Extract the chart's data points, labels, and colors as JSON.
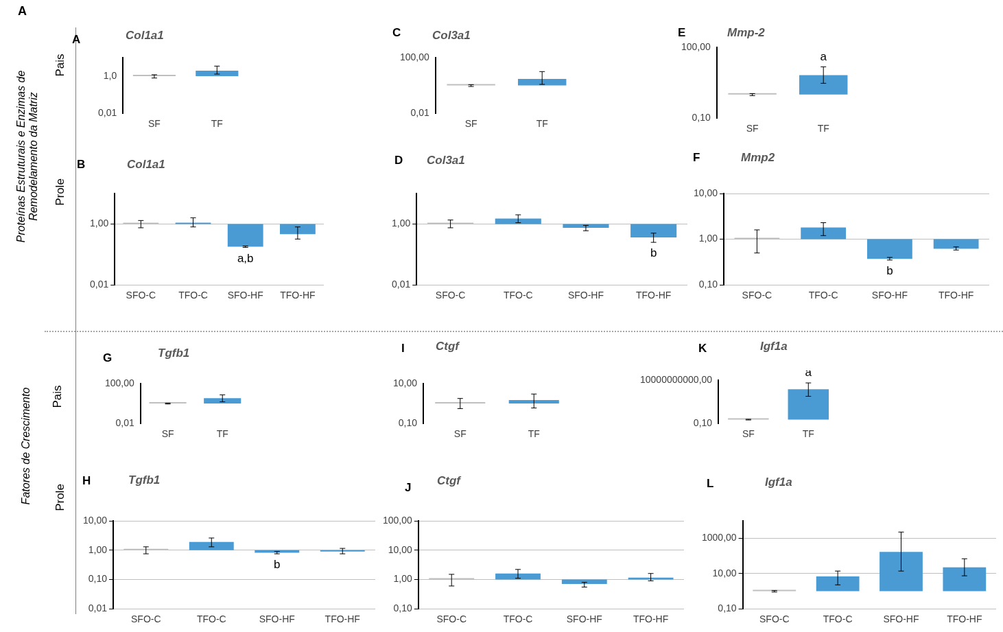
{
  "chart_data": [
    {
      "type": "bar",
      "title": "Col1a1",
      "categories": [
        "SF",
        "TF"
      ],
      "base": [
        1,
        1
      ],
      "values": [
        0,
        1
      ],
      "colors": [
        "#bfbfbf",
        "#4a9bd4"
      ],
      "errors": [
        [
          0.8,
          1.2
        ],
        [
          1.3,
          3.5
        ]
      ],
      "ylim": [
        0.01,
        10
      ],
      "yticks": [
        {
          "value": 0.01,
          "label": "0,01"
        },
        {
          "value": 1,
          "label": "1,0"
        }
      ],
      "log": true,
      "legend": false,
      "annotations": [
        "A",
        "Pais",
        "Proteínas Estruturais e Enzimas de Remodelamento da Matriz",
        "A"
      ]
    },
    {
      "type": "bar",
      "title": "Col3a1",
      "categories": [
        "SF",
        "TF"
      ],
      "base": [
        1,
        1
      ],
      "values": [
        0,
        2
      ],
      "colors": [
        "#bfbfbf",
        "#4a9bd4"
      ],
      "errors": [
        [
          0.85,
          1.15
        ],
        [
          1.2,
          10
        ]
      ],
      "ylim": [
        0.01,
        100
      ],
      "yticks": [
        {
          "value": 0.01,
          "label": "0,01"
        },
        {
          "value": 100,
          "label": "100,00"
        }
      ],
      "log": true,
      "legend": false,
      "annotations": [
        "C"
      ]
    },
    {
      "type": "bar",
      "title": "Mmp-2",
      "categories": [
        "SF",
        "TF"
      ],
      "base": [
        1,
        1
      ],
      "values": [
        0,
        5.7
      ],
      "colors": [
        "#bfbfbf",
        "#4a9bd4"
      ],
      "errors": [
        [
          0.9,
          1.1
        ],
        [
          3,
          15
        ]
      ],
      "ylim": [
        0.1,
        100
      ],
      "yticks": [
        {
          "value": 0.1,
          "label": "0,10"
        },
        {
          "value": 100,
          "label": "100,00"
        }
      ],
      "log": true,
      "legend": false,
      "annotations": [
        "E",
        {
          "text": "a",
          "x": "TF",
          "y": 6.7
        }
      ]
    },
    {
      "type": "bar",
      "title": "Col1a1",
      "categories": [
        "SFO-C",
        "TFO-C",
        "SFO-HF",
        "TFO-HF"
      ],
      "base": [
        1,
        1,
        1,
        1
      ],
      "values": [
        0,
        0.1,
        -0.82,
        -0.54
      ],
      "colors": [
        "#bfbfbf",
        "#4a9bd4",
        "#4a9bd4",
        "#4a9bd4"
      ],
      "errors": [
        [
          0.75,
          1.3
        ],
        [
          0.8,
          1.6
        ],
        [
          0.17,
          0.19
        ],
        [
          0.32,
          0.8
        ]
      ],
      "ylim": [
        0.01,
        10
      ],
      "yticks": [
        {
          "value": 0.01,
          "label": "0,01"
        },
        {
          "value": 1,
          "label": "1,00"
        }
      ],
      "log": true,
      "grid": "y",
      "legend": false,
      "annotations": [
        "B",
        "Prole",
        {
          "text": "a,b",
          "x": "SFO-HF",
          "y": 0.18
        }
      ]
    },
    {
      "type": "bar",
      "title": "Col3a1",
      "categories": [
        "SFO-C",
        "TFO-C",
        "SFO-HF",
        "TFO-HF"
      ],
      "base": [
        1,
        1,
        1,
        1
      ],
      "values": [
        0,
        0.5,
        -0.25,
        -0.64
      ],
      "colors": [
        "#bfbfbf",
        "#4a9bd4",
        "#4a9bd4",
        "#4a9bd4"
      ],
      "errors": [
        [
          0.75,
          1.35
        ],
        [
          1.1,
          2.0
        ],
        [
          0.6,
          0.9
        ],
        [
          0.25,
          0.5
        ]
      ],
      "ylim": [
        0.01,
        10
      ],
      "yticks": [
        {
          "value": 0.01,
          "label": "0,01"
        },
        {
          "value": 1,
          "label": "1,00"
        }
      ],
      "log": true,
      "grid": "y",
      "legend": false,
      "annotations": [
        "D",
        {
          "text": "b",
          "x": "TFO-HF",
          "y": 0.36
        }
      ]
    },
    {
      "type": "bar",
      "title": "Mmp2",
      "categories": [
        "SFO-C",
        "TFO-C",
        "SFO-HF",
        "TFO-HF"
      ],
      "base": [
        1,
        1,
        1,
        1
      ],
      "values": [
        0,
        0.8,
        -0.63,
        -0.38
      ],
      "colors": [
        "#bfbfbf",
        "#4a9bd4",
        "#4a9bd4",
        "#4a9bd4"
      ],
      "errors": [
        [
          0.5,
          1.6
        ],
        [
          1.2,
          2.3
        ],
        [
          0.35,
          0.4
        ],
        [
          0.58,
          0.68
        ]
      ],
      "ylim": [
        0.1,
        10
      ],
      "yticks": [
        {
          "value": 0.1,
          "label": "0,10"
        },
        {
          "value": 1,
          "label": "1,00"
        },
        {
          "value": 10,
          "label": "10,00"
        }
      ],
      "log": true,
      "grid": "y",
      "legend": false,
      "annotations": [
        "F",
        {
          "text": "b",
          "x": "SFO-HF",
          "y": 0.37
        }
      ]
    },
    {
      "type": "bar",
      "title": "Tgfb1",
      "categories": [
        "SF",
        "TF"
      ],
      "base": [
        1,
        1
      ],
      "values": [
        0,
        2.5
      ],
      "colors": [
        "#bfbfbf",
        "#4a9bd4"
      ],
      "errors": [
        [
          0.9,
          1.1
        ],
        [
          1.5,
          7.5
        ]
      ],
      "ylim": [
        0.01,
        100
      ],
      "yticks": [
        {
          "value": 0.01,
          "label": "0,01"
        },
        {
          "value": 100,
          "label": "100,00"
        }
      ],
      "log": true,
      "legend": false,
      "annotations": [
        "G",
        "Pais",
        "Fatores de Crescimento"
      ]
    },
    {
      "type": "bar",
      "title": "Ctgf",
      "categories": [
        "SF",
        "TF"
      ],
      "base": [
        1,
        1
      ],
      "values": [
        0,
        0.5
      ],
      "colors": [
        "#bfbfbf",
        "#4a9bd4"
      ],
      "errors": [
        [
          0.56,
          1.8
        ],
        [
          0.6,
          3
        ]
      ],
      "ylim": [
        0.1,
        10
      ],
      "yticks": [
        {
          "value": 0.1,
          "label": "0,10"
        },
        {
          "value": 10,
          "label": "10,00"
        }
      ],
      "log": true,
      "legend": false,
      "annotations": [
        "I"
      ]
    },
    {
      "type": "bar",
      "title": "Igf1a",
      "categories": [
        "SF",
        "TF"
      ],
      "base": [
        1,
        1
      ],
      "values": [
        0,
        49999999
      ],
      "colors": [
        "#bfbfbf",
        "#4a9bd4"
      ],
      "errors": [
        [
          0.8,
          1.2
        ],
        [
          800000,
          2000000000
        ]
      ],
      "ylim": [
        0.1,
        10000000000
      ],
      "yticks": [
        {
          "value": 0.1,
          "label": "0,10"
        },
        {
          "value": 10000000000,
          "label": "10000000000,00"
        }
      ],
      "log": true,
      "legend": false,
      "annotations": [
        "K",
        {
          "text": "a",
          "x": "TF",
          "y": 50000000
        }
      ]
    },
    {
      "type": "bar",
      "title": "Tgfb1",
      "categories": [
        "SFO-C",
        "TFO-C",
        "SFO-HF",
        "TFO-HF"
      ],
      "base": [
        1,
        1,
        1,
        1
      ],
      "values": [
        0,
        0.9,
        -0.18,
        -0.1
      ],
      "colors": [
        "#bfbfbf",
        "#4a9bd4",
        "#4a9bd4",
        "#4a9bd4"
      ],
      "errors": [
        [
          0.75,
          1.3
        ],
        [
          1.3,
          2.6
        ],
        [
          0.75,
          0.9
        ],
        [
          0.75,
          1.15
        ]
      ],
      "ylim": [
        0.01,
        10
      ],
      "yticks": [
        {
          "value": 0.01,
          "label": "0,01"
        },
        {
          "value": 0.1,
          "label": "0,10"
        },
        {
          "value": 1,
          "label": "1,00"
        },
        {
          "value": 10,
          "label": "10,00"
        }
      ],
      "log": true,
      "grid": "y",
      "legend": false,
      "annotations": [
        "H",
        "Prole",
        {
          "text": "b",
          "x": "SFO-HF",
          "y": 0.82
        }
      ]
    },
    {
      "type": "bar",
      "title": "Ctgf",
      "categories": [
        "SFO-C",
        "TFO-C",
        "SFO-HF",
        "TFO-HF"
      ],
      "base": [
        1,
        1,
        1,
        1
      ],
      "values": [
        0,
        0.6,
        -0.3,
        0.15
      ],
      "colors": [
        "#bfbfbf",
        "#4a9bd4",
        "#4a9bd4",
        "#4a9bd4"
      ],
      "errors": [
        [
          0.6,
          1.5
        ],
        [
          1.1,
          2.2
        ],
        [
          0.55,
          0.8
        ],
        [
          0.9,
          1.6
        ]
      ],
      "ylim": [
        0.1,
        100
      ],
      "yticks": [
        {
          "value": 0.1,
          "label": "0,10"
        },
        {
          "value": 1,
          "label": "1,00"
        },
        {
          "value": 10,
          "label": "10,00"
        },
        {
          "value": 100,
          "label": "100,00"
        }
      ],
      "log": true,
      "grid": "y",
      "legend": false,
      "annotations": [
        "J"
      ]
    },
    {
      "type": "bar",
      "title": "Igf1a",
      "categories": [
        "SFO-C",
        "TFO-C",
        "SFO-HF",
        "TFO-HF"
      ],
      "base": [
        1,
        1,
        1,
        1
      ],
      "values": [
        0,
        6,
        169,
        22
      ],
      "colors": [
        "#bfbfbf",
        "#4a9bd4",
        "#4a9bd4",
        "#4a9bd4"
      ],
      "errors": [
        [
          0.9,
          1.1
        ],
        [
          2.3,
          14
        ],
        [
          14,
          2300
        ],
        [
          7.5,
          70
        ]
      ],
      "ylim": [
        0.1,
        10000
      ],
      "yticks": [
        {
          "value": 0.1,
          "label": "0,10"
        },
        {
          "value": 10,
          "label": "10,00"
        },
        {
          "value": 1000,
          "label": "1000,00"
        }
      ],
      "log": true,
      "grid": "y",
      "legend": false,
      "annotations": [
        "L"
      ]
    }
  ]
}
